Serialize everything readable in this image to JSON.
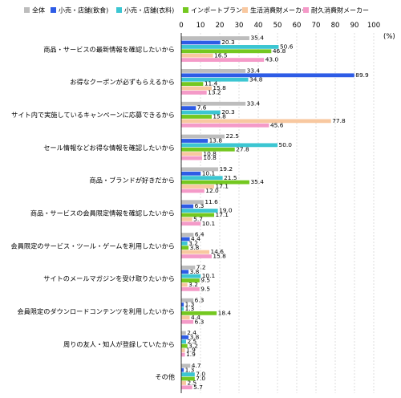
{
  "chart_data": {
    "type": "bar",
    "orientation": "horizontal",
    "unit": "(%)",
    "xlim": [
      0,
      100
    ],
    "xticks": [
      0,
      10,
      20,
      30,
      40,
      50,
      60,
      70,
      80,
      90,
      100
    ],
    "grid": true,
    "legend_position": "top",
    "categories": [
      "商品・サービスの最新情報を確認したいから",
      "お得なクーポンが必ずもらえるから",
      "サイト内で実施しているキャンペーンに応募できるから",
      "セール情報などお得な情報を確認したいから",
      "商品・ブランドが好きだから",
      "商品・サービスの会員限定情報を確認したいから",
      "会員限定のサービス・ツール・ゲームを利用したいから",
      "サイトのメールマガジンを受け取りたいから",
      "会員限定のダウンロードコンテンツを利用したいから",
      "周りの友人・知人が登録していたから",
      "その他"
    ],
    "series": [
      {
        "name": "全体",
        "color": "#bdbdbd",
        "values": [
          35.4,
          33.4,
          33.4,
          22.5,
          19.2,
          11.6,
          6.4,
          7.2,
          6.3,
          2.4,
          4.7
        ]
      },
      {
        "name": "小売・店舗(飲食)",
        "color": "#2e5ce6",
        "values": [
          20.3,
          89.9,
          7.6,
          13.8,
          10.1,
          6.3,
          4.4,
          3.8,
          1.3,
          3.8,
          1.3
        ]
      },
      {
        "name": "小売・店舗(衣料)",
        "color": "#3cc6d2",
        "values": [
          50.6,
          34.8,
          20.3,
          50.0,
          21.5,
          19.0,
          3.2,
          10.1,
          1.3,
          2.5,
          7.0
        ]
      },
      {
        "name": "インポートブランド",
        "color": "#74c820",
        "values": [
          46.8,
          11.4,
          15.8,
          27.8,
          35.4,
          17.1,
          3.8,
          9.5,
          18.4,
          3.2,
          7.0
        ]
      },
      {
        "name": "生活消費財メーカー",
        "color": "#f8c8a0",
        "values": [
          16.5,
          15.8,
          77.8,
          10.8,
          17.1,
          5.7,
          14.6,
          3.2,
          4.4,
          1.9,
          2.5
        ]
      },
      {
        "name": "耐久消費財メーカー",
        "color": "#f49ac8",
        "values": [
          43.0,
          13.2,
          45.6,
          10.8,
          12.0,
          10.1,
          15.8,
          9.5,
          6.3,
          1.9,
          5.7
        ]
      }
    ]
  }
}
